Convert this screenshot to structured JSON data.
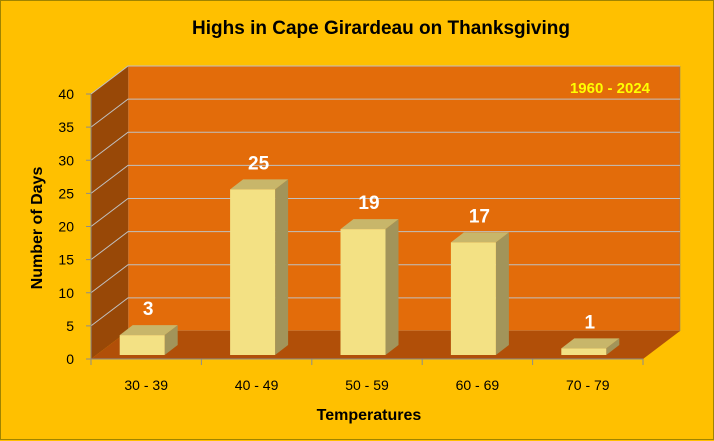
{
  "chart_data": {
    "type": "bar",
    "title": "Highs in Cape Girardeau on Thanksgiving",
    "annotation": "1960 - 2024",
    "xlabel": "Temperatures",
    "ylabel": "Number of Days",
    "categories": [
      "30 - 39",
      "40 - 49",
      "50 - 59",
      "60 - 69",
      "70 - 79"
    ],
    "values": [
      3,
      25,
      19,
      17,
      1
    ],
    "ylim": [
      0,
      40
    ],
    "yticks": [
      0,
      5,
      10,
      15,
      20,
      25,
      30,
      35,
      40
    ],
    "grid": true,
    "legend": "none",
    "colors": {
      "background": "#ffc000",
      "back_wall": "#e36c0a",
      "side_wall": "#984807",
      "floor": "#b14f08",
      "gridline": "#c0c0c0",
      "bar_front": "#f3e184",
      "bar_top": "#c8b66a",
      "bar_side": "#a2945a",
      "data_label": "#ffffff",
      "annotation": "#ffff00"
    }
  }
}
